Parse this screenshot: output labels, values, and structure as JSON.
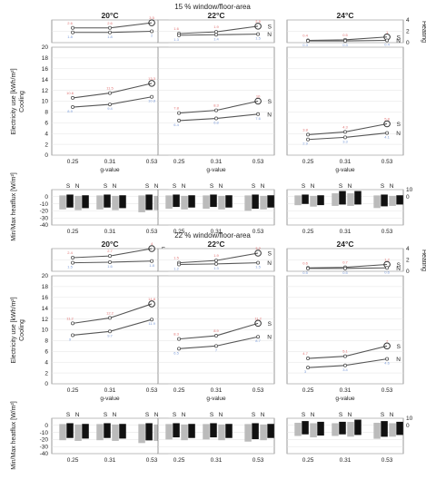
{
  "sections": [
    {
      "title": "15 % window/floor-area",
      "panels": [
        {
          "temp": "20°C"
        },
        {
          "temp": "22°C"
        },
        {
          "temp": "24°C"
        }
      ]
    },
    {
      "title": "22 % window/floor-area",
      "panels": [
        {
          "temp": "20°C"
        },
        {
          "temp": "22°C"
        },
        {
          "temp": "24°C"
        }
      ]
    }
  ],
  "labels": {
    "heating": "Heating",
    "electricity": "Electricity use [kWh/m²]",
    "cooling": "Cooling",
    "heatflux": "Min/Max heatflux [W/m²]",
    "xlabel": "g-value",
    "orient_s": "S",
    "orient_n": "N"
  },
  "colors": {
    "red_label": "#e07070",
    "blue_label": "#7a9ad8",
    "dark_bar": "#111111",
    "light_bar": "#bbbbbb"
  },
  "chart_data": [
    {
      "type": "line",
      "title": "15 % window/floor-area",
      "xlabel": "g-value",
      "categories": [
        "0.25",
        "0.31",
        "0.53"
      ],
      "heating": {
        "ylim": [
          0,
          4
        ],
        "yticks": [
          0,
          2,
          4
        ],
        "series": [
          {
            "name": "S",
            "values": [
              [
                2.6,
                2.6,
                3.5
              ],
              [
                1.6,
                1.9,
                2.9
              ],
              [
                0.4,
                0.5,
                1.0
              ]
            ]
          },
          {
            "name": "N",
            "values": [
              [
                1.8,
                1.8,
                2.0
              ],
              [
                1.3,
                1.4,
                1.5
              ],
              [
                0.3,
                0.3,
                0.4
              ]
            ]
          }
        ]
      },
      "cooling": {
        "ylim": [
          0,
          20
        ],
        "yticks": [
          0,
          2,
          4,
          6,
          8,
          10,
          12,
          14,
          16,
          18,
          20
        ],
        "series": [
          {
            "name": "S",
            "values": [
              [
                10.6,
                11.5,
                13.3
              ],
              [
                7.8,
                8.3,
                10.0
              ],
              [
                3.8,
                4.3,
                5.8
              ]
            ]
          },
          {
            "name": "N",
            "values": [
              [
                8.9,
                9.4,
                10.8
              ],
              [
                6.4,
                6.8,
                7.6
              ],
              [
                2.9,
                3.3,
                4.1
              ]
            ]
          }
        ]
      },
      "heatflux": {
        "ylim": [
          -40,
          10
        ],
        "yticks": [
          -40,
          -30,
          -20,
          -10,
          0,
          10
        ],
        "bars": [
          {
            "name": "S",
            "min": [
              [
                -18,
                -18,
                -22
              ],
              [
                -17,
                -17,
                -20
              ],
              [
                -12,
                -13,
                -16
              ]
            ],
            "max": [
              [
                3,
                3,
                3
              ],
              [
                3,
                3,
                3
              ],
              [
                3,
                8,
                3
              ]
            ]
          },
          {
            "name": "N",
            "min": [
              [
                -19,
                -19,
                -19
              ],
              [
                -18,
                -18,
                -18
              ],
              [
                -14,
                -13,
                -13
              ]
            ],
            "max": [
              [
                2,
                2,
                2
              ],
              [
                2,
                2,
                2
              ],
              [
                2,
                8,
                2
              ]
            ]
          }
        ]
      }
    },
    {
      "type": "line",
      "title": "22 % window/floor-area",
      "xlabel": "g-value",
      "categories": [
        "0.25",
        "0.31",
        "0.53"
      ],
      "heating": {
        "ylim": [
          0,
          4
        ],
        "yticks": [
          0,
          2,
          4
        ],
        "series": [
          {
            "name": "S",
            "values": [
              [
                2.4,
                2.7,
                4.0
              ],
              [
                1.5,
                1.9,
                3.2
              ],
              [
                0.6,
                0.7,
                1.2
              ]
            ]
          },
          {
            "name": "N",
            "values": [
              [
                1.5,
                1.6,
                1.8
              ],
              [
                1.2,
                1.3,
                1.5
              ],
              [
                0.5,
                0.5,
                0.6
              ]
            ]
          }
        ]
      },
      "cooling": {
        "ylim": [
          0,
          20
        ],
        "yticks": [
          0,
          2,
          4,
          6,
          8,
          10,
          12,
          14,
          16,
          18,
          20
        ],
        "series": [
          {
            "name": "S",
            "values": [
              [
                11.2,
                12.2,
                14.8
              ],
              [
                8.3,
                8.9,
                11.2
              ],
              [
                4.7,
                5.1,
                7.0
              ]
            ]
          },
          {
            "name": "N",
            "values": [
              [
                9.0,
                9.7,
                11.9
              ],
              [
                6.5,
                7.0,
                8.7
              ],
              [
                3.0,
                3.4,
                4.6
              ]
            ]
          }
        ]
      },
      "heatflux": {
        "ylim": [
          -40,
          10
        ],
        "yticks": [
          -40,
          -30,
          -20,
          -10,
          0,
          10
        ],
        "bars": [
          {
            "name": "S",
            "min": [
              [
                -21,
                -21,
                -25
              ],
              [
                -20,
                -20,
                -23
              ],
              [
                -15,
                -15,
                -19
              ]
            ],
            "max": [
              [
                3,
                3,
                3
              ],
              [
                3,
                3,
                3
              ],
              [
                6,
                5,
                6
              ]
            ]
          },
          {
            "name": "N",
            "min": [
              [
                -22,
                -22,
                -22
              ],
              [
                -21,
                -21,
                -21
              ],
              [
                -17,
                -16,
                -16
              ]
            ],
            "max": [
              [
                2,
                2,
                2
              ],
              [
                2,
                2,
                2
              ],
              [
                5,
                8,
                5
              ]
            ]
          }
        ]
      }
    }
  ]
}
